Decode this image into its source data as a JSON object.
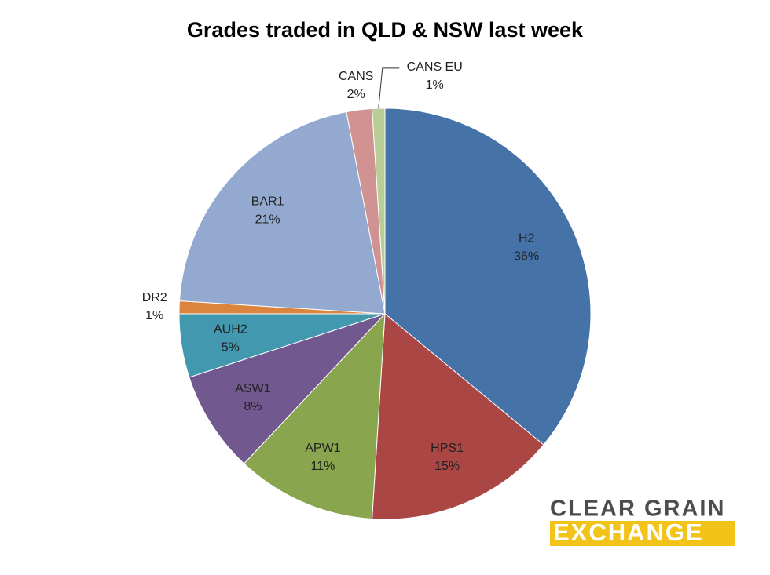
{
  "chart_data": {
    "type": "pie",
    "title": "Grades traded in QLD & NSW last week",
    "categories": [
      "H2",
      "HPS1",
      "APW1",
      "ASW1",
      "AUH2",
      "DR2",
      "BAR1",
      "CANS",
      "CANS EU"
    ],
    "values": [
      36,
      15,
      11,
      8,
      5,
      1,
      21,
      2,
      1
    ],
    "value_labels": [
      "36%",
      "15%",
      "11%",
      "8%",
      "5%",
      "1%",
      "21%",
      "2%",
      "1%"
    ],
    "colors": [
      "#4572a7",
      "#aa4643",
      "#89a54e",
      "#71588f",
      "#4198af",
      "#db843d",
      "#93a9cf",
      "#d19392",
      "#b9cd96"
    ]
  },
  "logo": {
    "line1": "CLEAR GRAIN",
    "line2": "EXCHANGE"
  }
}
